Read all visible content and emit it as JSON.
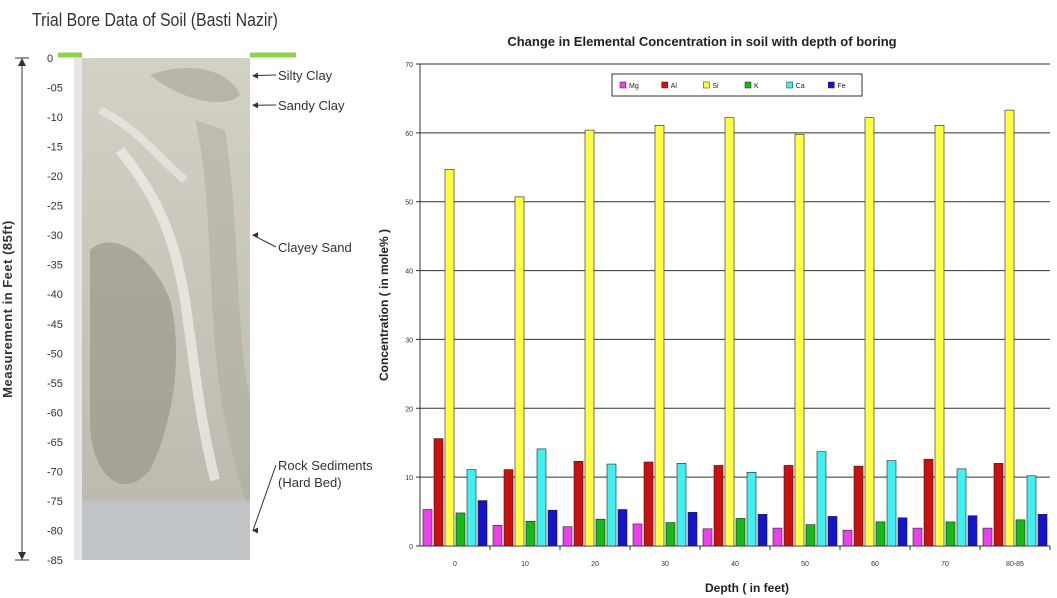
{
  "bore_profile": {
    "title": "Trial Bore Data of Soil (Basti Nazir)",
    "axis_label": "Measurement in Feet (85ft)",
    "depth_ticks": [
      "0",
      "-05",
      "-10",
      "-15",
      "-20",
      "-25",
      "-30",
      "-35",
      "-40",
      "-45",
      "-50",
      "-55",
      "-60",
      "-65",
      "-70",
      "-75",
      "-80",
      "-85"
    ],
    "layers": [
      {
        "label": "Silty Clay",
        "depth_ft": 3
      },
      {
        "label": "Sandy Clay",
        "depth_ft": 8
      },
      {
        "label": "Clayey Sand",
        "depth_ft": 30
      },
      {
        "label": "Rock Sediments",
        "label2": "(Hard Bed)",
        "depth_ft": 80
      }
    ],
    "hard_bed_start_ft": 75,
    "colors": {
      "marker": "#8ed14a",
      "soil": "#c9c6ba",
      "soil_dark": "#8f8c80",
      "rock": "#b6b9ba"
    }
  },
  "chart_data": {
    "type": "bar",
    "title": "Change in Elemental Concentration in soil with depth of boring",
    "xlabel": "Depth ( in feet)",
    "ylabel": "Concentration ( in mole% )",
    "ylim": [
      0,
      70
    ],
    "yticks": [
      0,
      10,
      20,
      30,
      40,
      50,
      60,
      70
    ],
    "grid": true,
    "legend": "top",
    "categories": [
      "0",
      "10",
      "20",
      "30",
      "40",
      "50",
      "60",
      "70",
      "80-85"
    ],
    "series": [
      {
        "name": "Mg",
        "color": "#ee3fee",
        "values": [
          5.3,
          3.0,
          2.8,
          3.2,
          2.5,
          2.6,
          2.3,
          2.6,
          2.6
        ]
      },
      {
        "name": "Al",
        "color": "#cc1010",
        "values": [
          15.6,
          11.1,
          12.3,
          12.2,
          11.7,
          11.7,
          11.6,
          12.6,
          12.0
        ]
      },
      {
        "name": "Si",
        "color": "#ffff44",
        "values": [
          54.7,
          50.7,
          60.4,
          61.1,
          62.2,
          59.8,
          62.2,
          61.1,
          63.3
        ]
      },
      {
        "name": "K",
        "color": "#18b818",
        "values": [
          4.8,
          3.6,
          3.9,
          3.4,
          4.0,
          3.1,
          3.5,
          3.5,
          3.8
        ]
      },
      {
        "name": "Ca",
        "color": "#3ff0f0",
        "values": [
          11.1,
          14.1,
          11.9,
          12.0,
          10.7,
          13.7,
          12.4,
          11.2,
          10.2
        ]
      },
      {
        "name": "Fe",
        "color": "#1414cc",
        "values": [
          6.6,
          5.2,
          5.3,
          4.9,
          4.6,
          4.3,
          4.1,
          4.4,
          4.6
        ]
      }
    ]
  }
}
